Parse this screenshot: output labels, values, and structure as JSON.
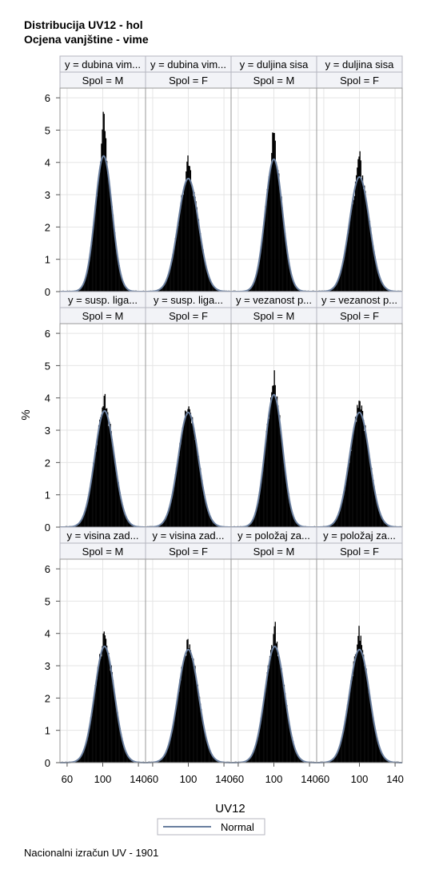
{
  "titles": [
    "Distribucija UV12 - hol",
    "Ocjena vanjštine - vime"
  ],
  "footnote": "Nacionalni izračun UV - 1901",
  "colors": {
    "histogram": "#000000",
    "normal_curve": "#6a7f9f",
    "header_bg": "#f2f3f7",
    "grid": "#e5e5e5"
  },
  "chart_data": {
    "type": "histogram-panel",
    "xlabel": "UV12",
    "ylabel": "%",
    "xticks": [
      60,
      100,
      140
    ],
    "xlim": [
      52,
      148
    ],
    "yticks": [
      0,
      1,
      2,
      3,
      4,
      5,
      6
    ],
    "ylim": [
      0,
      6.3
    ],
    "legend": {
      "items": [
        "Normal"
      ],
      "placement": "bottom"
    },
    "panels": [
      {
        "row": 0,
        "col": 0,
        "y_label": "y = dubina vim...",
        "spol_label": "Spol = M",
        "normal_mean": 101,
        "normal_sd": 9.5,
        "peak_percent": 4.2,
        "hist_max_percent": 5.9
      },
      {
        "row": 0,
        "col": 1,
        "y_label": "y = dubina vim...",
        "spol_label": "Spol = F",
        "normal_mean": 100,
        "normal_sd": 11.5,
        "peak_percent": 3.5,
        "hist_max_percent": 4.5
      },
      {
        "row": 0,
        "col": 2,
        "y_label": "y = duljina sisa",
        "spol_label": "Spol = M",
        "normal_mean": 100,
        "normal_sd": 9.7,
        "peak_percent": 4.1,
        "hist_max_percent": 5.3
      },
      {
        "row": 0,
        "col": 3,
        "y_label": "y = duljina sisa",
        "spol_label": "Spol = F",
        "normal_mean": 100,
        "normal_sd": 11.2,
        "peak_percent": 3.55,
        "hist_max_percent": 4.6
      },
      {
        "row": 1,
        "col": 0,
        "y_label": "y = susp. liga...",
        "spol_label": "Spol = M",
        "normal_mean": 102,
        "normal_sd": 11.0,
        "peak_percent": 3.6,
        "hist_max_percent": 4.15
      },
      {
        "row": 1,
        "col": 1,
        "y_label": "y = susp. liga...",
        "spol_label": "Spol = F",
        "normal_mean": 100,
        "normal_sd": 11.3,
        "peak_percent": 3.55,
        "hist_max_percent": 3.85
      },
      {
        "row": 1,
        "col": 2,
        "y_label": "y = vezanost p...",
        "spol_label": "Spol = M",
        "normal_mean": 100,
        "normal_sd": 9.8,
        "peak_percent": 4.1,
        "hist_max_percent": 5.05
      },
      {
        "row": 1,
        "col": 3,
        "y_label": "y = vezanost p...",
        "spol_label": "Spol = F",
        "normal_mean": 100,
        "normal_sd": 11.3,
        "peak_percent": 3.55,
        "hist_max_percent": 4.15
      },
      {
        "row": 2,
        "col": 0,
        "y_label": "y = visina zad...",
        "spol_label": "Spol = M",
        "normal_mean": 102,
        "normal_sd": 11.0,
        "peak_percent": 3.6,
        "hist_max_percent": 4.1
      },
      {
        "row": 2,
        "col": 1,
        "y_label": "y = visina zad...",
        "spol_label": "Spol = F",
        "normal_mean": 100,
        "normal_sd": 11.5,
        "peak_percent": 3.5,
        "hist_max_percent": 3.85
      },
      {
        "row": 2,
        "col": 2,
        "y_label": "y = položaj za...",
        "spol_label": "Spol = M",
        "normal_mean": 101,
        "normal_sd": 11.0,
        "peak_percent": 3.6,
        "hist_max_percent": 4.5
      },
      {
        "row": 2,
        "col": 3,
        "y_label": "y = položaj za...",
        "spol_label": "Spol = F",
        "normal_mean": 100,
        "normal_sd": 11.3,
        "peak_percent": 3.5,
        "hist_max_percent": 4.45
      }
    ]
  }
}
